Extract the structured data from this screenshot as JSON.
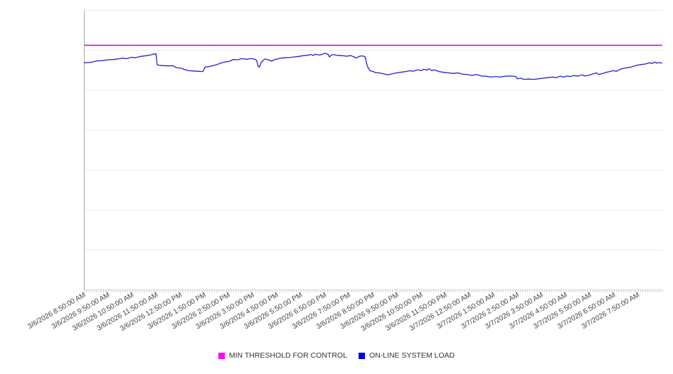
{
  "chart_data": {
    "type": "line",
    "title": "",
    "x_axis": {
      "labels": [
        "3/6/2026 8:50:00 AM",
        "3/6/2026 9:50:00 AM",
        "3/6/2026 10:50:00 AM",
        "3/6/2026 11:50:00 AM",
        "3/6/2026 12:50:00 PM",
        "3/6/2026 1:50:00 PM",
        "3/6/2026 2:50:00 PM",
        "3/6/2026 3:50:00 PM",
        "3/6/2026 4:50:00 PM",
        "3/6/2026 5:50:00 PM",
        "3/6/2026 6:50:00 PM",
        "3/6/2026 7:50:00 PM",
        "3/6/2026 8:50:00 PM",
        "3/6/2026 9:50:00 PM",
        "3/6/2026 10:50:00 PM",
        "3/6/2026 11:50:00 PM",
        "3/7/2026 12:50:00 AM",
        "3/7/2026 1:50:00 AM",
        "3/7/2026 2:50:00 AM",
        "3/7/2026 3:50:00 AM",
        "3/7/2026 4:50:00 AM",
        "3/7/2026 5:50:00 AM",
        "3/7/2026 6:50:00 AM",
        "3/7/2026 7:50:00 AM"
      ],
      "label_rotation_deg": -30,
      "minor_ticks_per_hour": 10
    },
    "y_axis": {
      "labels_visible": false,
      "range": [
        0,
        100
      ],
      "gridline_count": 8
    },
    "series": [
      {
        "name": "MIN THRESHOLD FOR CONTROL",
        "type": "threshold",
        "color": "#CC00CC",
        "legend_color": "#FF00FF",
        "value": 87.5
      },
      {
        "name": "ON-LINE SYSTEM LOAD",
        "type": "line",
        "color": "#2222CC",
        "legend_color": "#0000EE",
        "points": [
          [
            0.0,
            81.2
          ],
          [
            0.012,
            81.4
          ],
          [
            0.022,
            81.9
          ],
          [
            0.033,
            82.0
          ],
          [
            0.04,
            82.3
          ],
          [
            0.051,
            82.4
          ],
          [
            0.061,
            82.7
          ],
          [
            0.066,
            82.9
          ],
          [
            0.073,
            82.7
          ],
          [
            0.082,
            83.2
          ],
          [
            0.088,
            83.0
          ],
          [
            0.098,
            83.5
          ],
          [
            0.108,
            83.8
          ],
          [
            0.114,
            84.0
          ],
          [
            0.119,
            84.3
          ],
          [
            0.124,
            84.4
          ],
          [
            0.126,
            80.5
          ],
          [
            0.128,
            80.4
          ],
          [
            0.135,
            80.2
          ],
          [
            0.147,
            80.1
          ],
          [
            0.153,
            80.2
          ],
          [
            0.159,
            79.5
          ],
          [
            0.167,
            79.3
          ],
          [
            0.172,
            78.9
          ],
          [
            0.18,
            78.4
          ],
          [
            0.188,
            78.3
          ],
          [
            0.196,
            78.2
          ],
          [
            0.205,
            78.1
          ],
          [
            0.209,
            79.7
          ],
          [
            0.217,
            79.9
          ],
          [
            0.23,
            80.6
          ],
          [
            0.237,
            81.2
          ],
          [
            0.246,
            81.6
          ],
          [
            0.252,
            81.8
          ],
          [
            0.257,
            82.4
          ],
          [
            0.264,
            82.3
          ],
          [
            0.273,
            82.7
          ],
          [
            0.281,
            82.5
          ],
          [
            0.287,
            82.7
          ],
          [
            0.294,
            82.6
          ],
          [
            0.298,
            82.1
          ],
          [
            0.301,
            79.9
          ],
          [
            0.303,
            79.7
          ],
          [
            0.306,
            81.3
          ],
          [
            0.31,
            82.2
          ],
          [
            0.313,
            82.6
          ],
          [
            0.318,
            82.3
          ],
          [
            0.324,
            81.8
          ],
          [
            0.33,
            82.4
          ],
          [
            0.338,
            82.8
          ],
          [
            0.346,
            83.0
          ],
          [
            0.355,
            83.1
          ],
          [
            0.363,
            83.3
          ],
          [
            0.371,
            83.5
          ],
          [
            0.38,
            83.8
          ],
          [
            0.387,
            83.9
          ],
          [
            0.392,
            84.2
          ],
          [
            0.396,
            83.8
          ],
          [
            0.399,
            84.3
          ],
          [
            0.404,
            84.1
          ],
          [
            0.408,
            84.0
          ],
          [
            0.413,
            84.4
          ],
          [
            0.417,
            84.6
          ],
          [
            0.422,
            84.2
          ],
          [
            0.424,
            83.3
          ],
          [
            0.428,
            84.1
          ],
          [
            0.433,
            84.1
          ],
          [
            0.436,
            83.9
          ],
          [
            0.445,
            83.8
          ],
          [
            0.454,
            83.6
          ],
          [
            0.461,
            83.8
          ],
          [
            0.467,
            83.3
          ],
          [
            0.47,
            82.9
          ],
          [
            0.476,
            83.5
          ],
          [
            0.479,
            83.7
          ],
          [
            0.483,
            83.6
          ],
          [
            0.486,
            83.3
          ],
          [
            0.488,
            81.3
          ],
          [
            0.49,
            79.9
          ],
          [
            0.494,
            78.4
          ],
          [
            0.5,
            78.1
          ],
          [
            0.503,
            77.7
          ],
          [
            0.51,
            77.6
          ],
          [
            0.519,
            77.2
          ],
          [
            0.525,
            76.9
          ],
          [
            0.531,
            77.2
          ],
          [
            0.54,
            77.6
          ],
          [
            0.547,
            77.8
          ],
          [
            0.556,
            78.1
          ],
          [
            0.564,
            78.4
          ],
          [
            0.568,
            78.2
          ],
          [
            0.577,
            78.7
          ],
          [
            0.583,
            78.4
          ],
          [
            0.587,
            78.9
          ],
          [
            0.593,
            78.6
          ],
          [
            0.596,
            79.1
          ],
          [
            0.601,
            78.4
          ],
          [
            0.605,
            78.7
          ],
          [
            0.614,
            78.1
          ],
          [
            0.621,
            77.8
          ],
          [
            0.63,
            77.6
          ],
          [
            0.638,
            77.4
          ],
          [
            0.646,
            77.6
          ],
          [
            0.654,
            77.2
          ],
          [
            0.663,
            77.0
          ],
          [
            0.67,
            76.7
          ],
          [
            0.679,
            77.0
          ],
          [
            0.687,
            76.5
          ],
          [
            0.695,
            76.4
          ],
          [
            0.703,
            76.1
          ],
          [
            0.712,
            76.3
          ],
          [
            0.719,
            76.1
          ],
          [
            0.728,
            76.4
          ],
          [
            0.737,
            76.5
          ],
          [
            0.747,
            76.3
          ],
          [
            0.749,
            75.5
          ],
          [
            0.755,
            75.7
          ],
          [
            0.761,
            75.3
          ],
          [
            0.769,
            75.4
          ],
          [
            0.777,
            75.3
          ],
          [
            0.786,
            75.5
          ],
          [
            0.793,
            75.7
          ],
          [
            0.802,
            75.9
          ],
          [
            0.81,
            76.1
          ],
          [
            0.817,
            75.9
          ],
          [
            0.823,
            76.4
          ],
          [
            0.829,
            76.1
          ],
          [
            0.835,
            76.5
          ],
          [
            0.841,
            76.3
          ],
          [
            0.847,
            76.7
          ],
          [
            0.854,
            76.4
          ],
          [
            0.86,
            76.9
          ],
          [
            0.866,
            76.5
          ],
          [
            0.872,
            76.7
          ],
          [
            0.879,
            77.2
          ],
          [
            0.886,
            77.6
          ],
          [
            0.89,
            77.0
          ],
          [
            0.897,
            77.4
          ],
          [
            0.903,
            77.8
          ],
          [
            0.909,
            78.1
          ],
          [
            0.915,
            78.4
          ],
          [
            0.921,
            78.2
          ],
          [
            0.927,
            78.9
          ],
          [
            0.934,
            79.3
          ],
          [
            0.94,
            79.5
          ],
          [
            0.946,
            79.7
          ],
          [
            0.952,
            80.1
          ],
          [
            0.958,
            80.4
          ],
          [
            0.964,
            80.6
          ],
          [
            0.971,
            80.8
          ],
          [
            0.977,
            81.2
          ],
          [
            0.983,
            81.0
          ],
          [
            0.987,
            81.5
          ],
          [
            0.99,
            81.1
          ],
          [
            0.995,
            81.3
          ],
          [
            0.999,
            81.1
          ]
        ]
      }
    ],
    "legend": {
      "position": "bottom",
      "items": [
        {
          "label": "MIN THRESHOLD FOR CONTROL",
          "marker": "square",
          "color": "#FF00FF"
        },
        {
          "label": "ON-LINE SYSTEM LOAD",
          "marker": "square",
          "color": "#0000EE"
        }
      ]
    }
  },
  "colors": {
    "background": "#FFFFFF",
    "gridline": "#E9E9E9",
    "bottom_axis": "#DDDDDD",
    "left_border": "#A8A8A8",
    "tick": "#C9C9C9",
    "axis_label_text": "#444444",
    "legend_text": "#333333"
  }
}
